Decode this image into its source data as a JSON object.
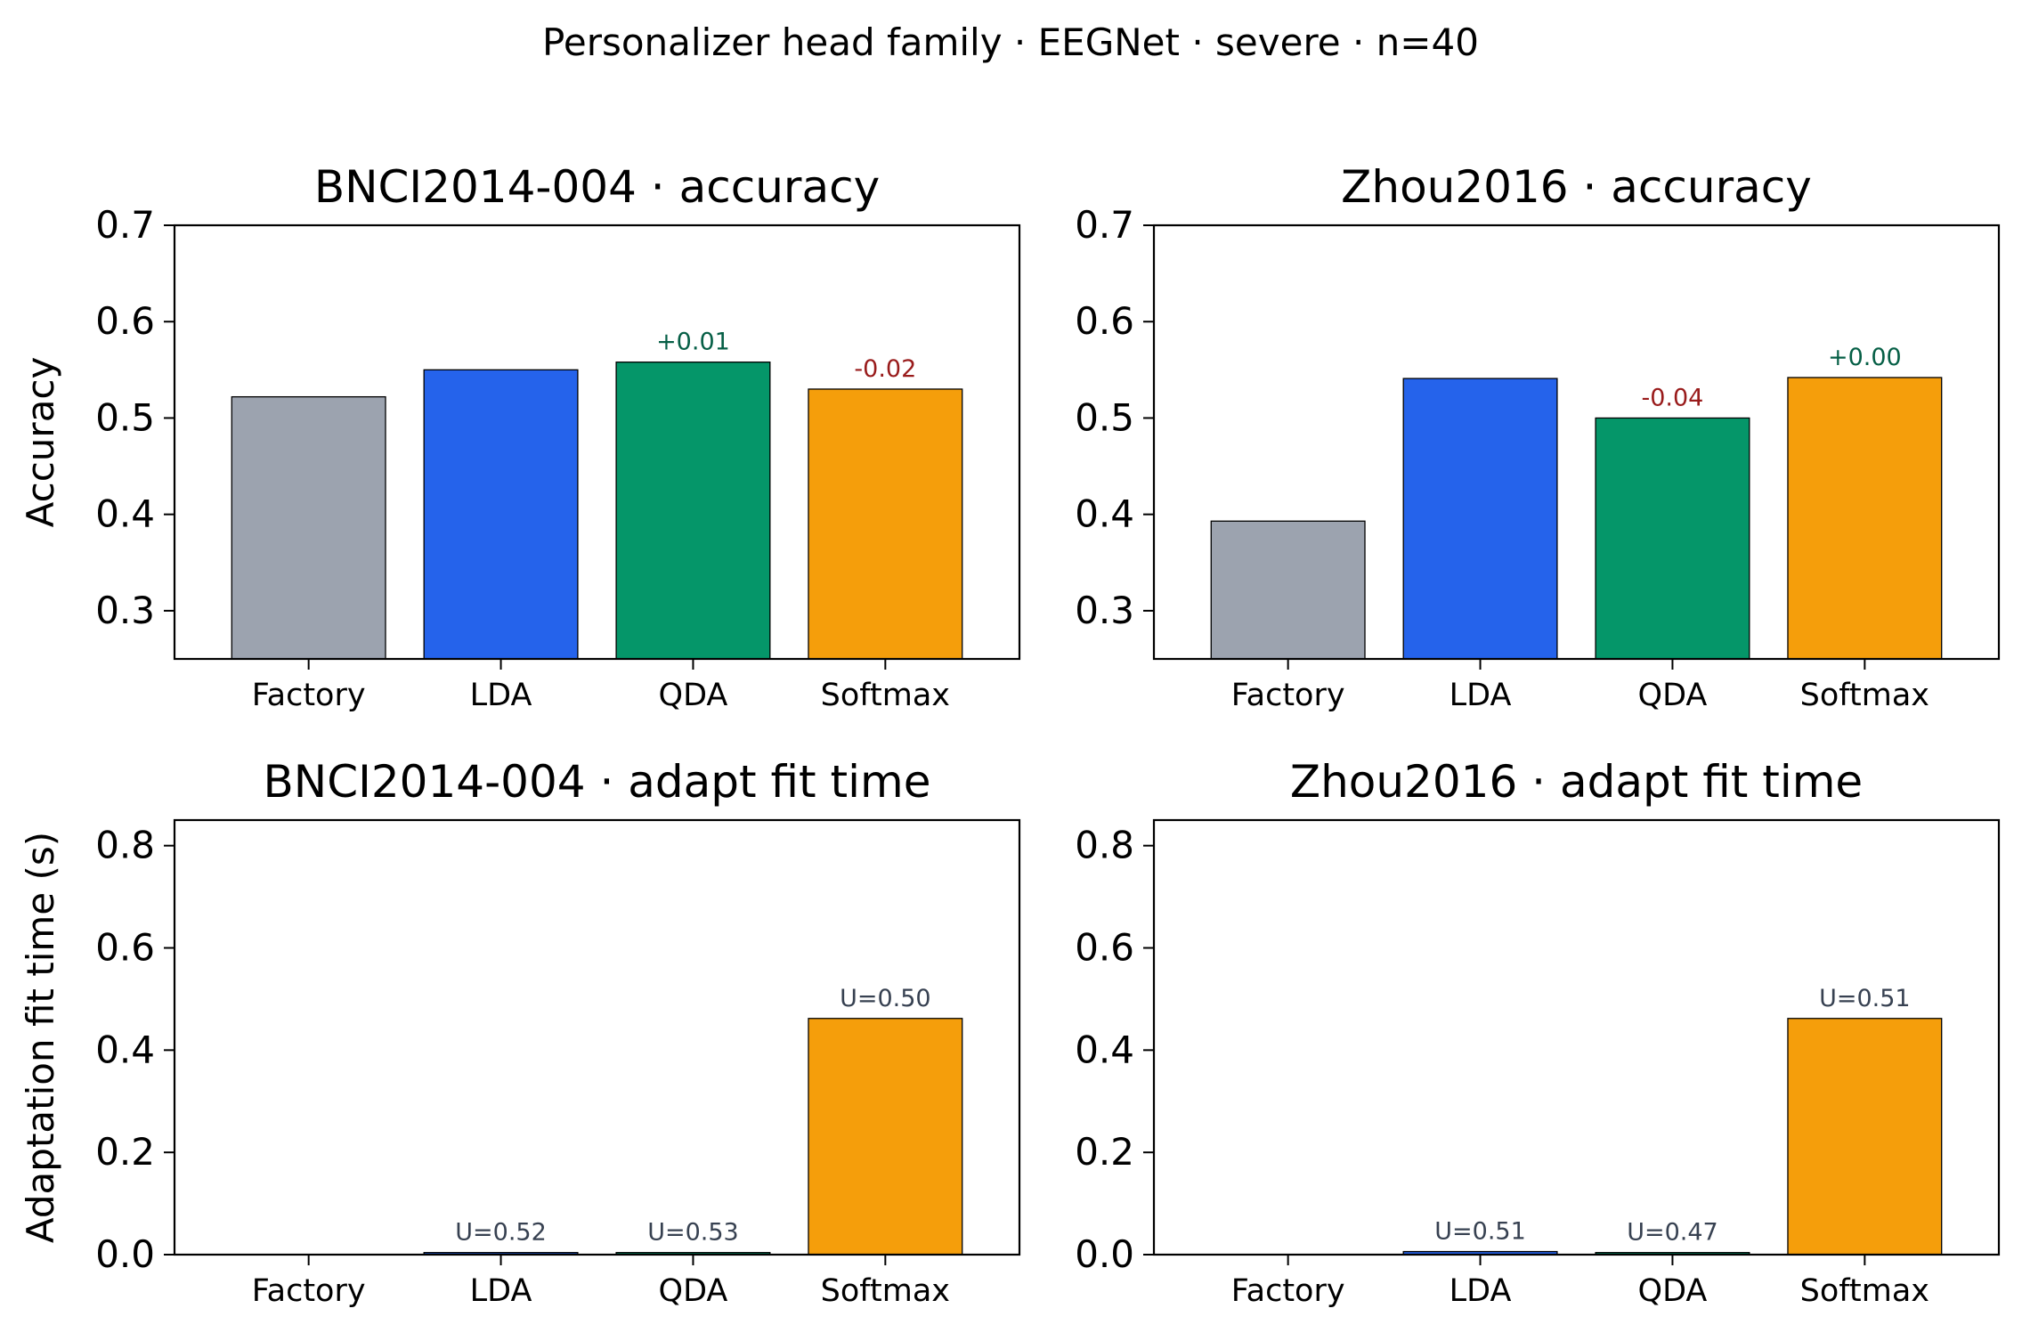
{
  "figure": {
    "suptitle": "Personalizer head family · EEGNet · severe · n=40"
  },
  "colors": {
    "Factory": "#9ca3af",
    "LDA": "#2563eb",
    "QDA": "#059669",
    "Softmax": "#f59e0b",
    "positive_delta": "#065f46",
    "negative_delta": "#991b1b",
    "u_label": "#374151"
  },
  "chart_data": [
    {
      "type": "bar",
      "title": "BNCI2014-004 · accuracy",
      "ylabel": "Accuracy",
      "xlabel": "",
      "categories": [
        "Factory",
        "LDA",
        "QDA",
        "Softmax"
      ],
      "values": [
        0.522,
        0.55,
        0.558,
        0.53
      ],
      "ylim": [
        0.25,
        0.7
      ],
      "yticks": [
        0.3,
        0.4,
        0.5,
        0.6,
        0.7
      ],
      "ytick_labels": [
        "0.3",
        "0.4",
        "0.5",
        "0.6",
        "0.7"
      ],
      "annotations": [
        "",
        "",
        "+0.01",
        "-0.02"
      ],
      "annotation_tone": [
        "",
        "",
        "positive",
        "negative"
      ],
      "grid": false,
      "legend": "none"
    },
    {
      "type": "bar",
      "title": "Zhou2016 · accuracy",
      "ylabel": "",
      "xlabel": "",
      "categories": [
        "Factory",
        "LDA",
        "QDA",
        "Softmax"
      ],
      "values": [
        0.393,
        0.541,
        0.5,
        0.542
      ],
      "ylim": [
        0.25,
        0.7
      ],
      "yticks": [
        0.3,
        0.4,
        0.5,
        0.6,
        0.7
      ],
      "ytick_labels": [
        "0.3",
        "0.4",
        "0.5",
        "0.6",
        "0.7"
      ],
      "annotations": [
        "",
        "",
        "-0.04",
        "+0.00"
      ],
      "annotation_tone": [
        "",
        "",
        "negative",
        "positive"
      ],
      "grid": false,
      "legend": "none"
    },
    {
      "type": "bar",
      "title": "BNCI2014-004 · adapt fit time",
      "ylabel": "Adaptation fit time (s)",
      "xlabel": "",
      "categories": [
        "Factory",
        "LDA",
        "QDA",
        "Softmax"
      ],
      "values": [
        0.0,
        0.004,
        0.004,
        0.462
      ],
      "ylim": [
        0.0,
        0.85
      ],
      "yticks": [
        0.0,
        0.2,
        0.4,
        0.6,
        0.8
      ],
      "ytick_labels": [
        "0.0",
        "0.2",
        "0.4",
        "0.6",
        "0.8"
      ],
      "annotations": [
        "",
        "U=0.52",
        "U=0.53",
        "U=0.50"
      ],
      "annotation_tone": [
        "",
        "neutral",
        "neutral",
        "neutral"
      ],
      "grid": false,
      "legend": "none"
    },
    {
      "type": "bar",
      "title": "Zhou2016 · adapt fit time",
      "ylabel": "",
      "xlabel": "",
      "categories": [
        "Factory",
        "LDA",
        "QDA",
        "Softmax"
      ],
      "values": [
        0.0,
        0.006,
        0.004,
        0.462
      ],
      "ylim": [
        0.0,
        0.85
      ],
      "yticks": [
        0.0,
        0.2,
        0.4,
        0.6,
        0.8
      ],
      "ytick_labels": [
        "0.0",
        "0.2",
        "0.4",
        "0.6",
        "0.8"
      ],
      "annotations": [
        "",
        "U=0.51",
        "U=0.47",
        "U=0.51"
      ],
      "annotation_tone": [
        "",
        "neutral",
        "neutral",
        "neutral"
      ],
      "grid": false,
      "legend": "none"
    }
  ]
}
